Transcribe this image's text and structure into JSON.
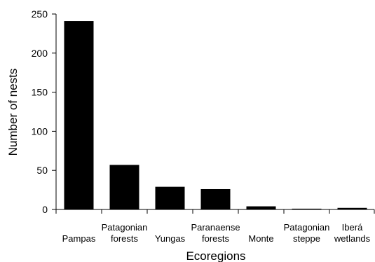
{
  "chart_data": {
    "type": "bar",
    "categories": [
      "Pampas",
      "Patagonian forests",
      "Yungas",
      "Paranaense forests",
      "Monte",
      "Patagonian steppe",
      "Iberá wetlands"
    ],
    "category_lines": [
      [
        "Pampas"
      ],
      [
        "Patagonian",
        "forests"
      ],
      [
        "Yungas"
      ],
      [
        "Paranaense",
        "forests"
      ],
      [
        "Monte"
      ],
      [
        "Patagonian",
        "steppe"
      ],
      [
        "Iberá",
        "wetlands"
      ]
    ],
    "values": [
      241,
      57,
      29,
      26,
      4,
      1,
      2
    ],
    "xlabel": "Ecoregions",
    "ylabel": "Number of nests",
    "ylim": [
      0,
      250
    ],
    "yticks": [
      0,
      50,
      100,
      150,
      200,
      250
    ],
    "grid": false,
    "bar_color": "#000000"
  }
}
